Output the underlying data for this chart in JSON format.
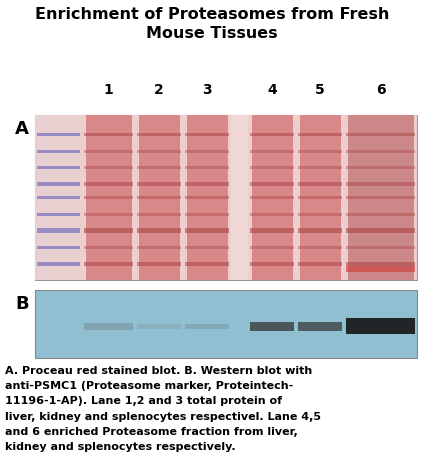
{
  "title": "Enrichment of Proteasomes from Fresh\nMouse Tissues",
  "title_fontsize": 11.5,
  "title_fontweight": "bold",
  "label_A": "A",
  "label_B": "B",
  "lane_numbers": [
    "1",
    "2",
    "3",
    "4",
    "5",
    "6"
  ],
  "lane_num_fontsize": 10,
  "lane_num_fontweight": "bold",
  "caption": "A. Proceau red stained blot. B. Western blot with\nanti-PSMC1 (Proteasome marker, Proteintech-\n11196-1-AP). Lane 1,2 and 3 total protein of\nliver, kidney and splenocytes respectivel. Lane 4,5\nand 6 enriched Proteasome fraction from liver,\nkidney and splenocytes respectively.",
  "caption_fontsize": 8.0,
  "caption_fontweight": "bold",
  "bg_color": "#ffffff",
  "gel_A_bg": "#e8b0b0",
  "gel_A_lane_bg": "#d08080",
  "gel_A_gap_bg": "#f0d0d0",
  "gel_B_bg": "#8fbfd0",
  "marker_color": "#5555bb",
  "ab_label_fontsize": 13,
  "ab_label_fontweight": "bold"
}
